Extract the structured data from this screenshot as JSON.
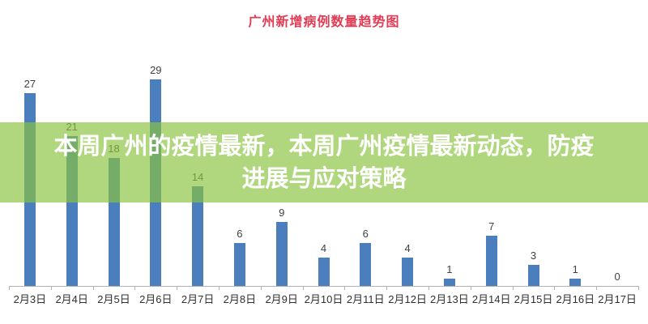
{
  "title": {
    "text": "广州新增病例数量趋势图",
    "color": "#E23C55"
  },
  "overlay": {
    "line1": "本周广州的疫情最新，本周广州疫情最新动态，防疫",
    "line2": "进展与应对策略",
    "full_text": "本周广州的疫情最新，本周广州疫情最新动态，防疫进展与应对策略",
    "band_color": "#89C43E",
    "band_opacity": 0.67,
    "text_color": "#FFFFFF"
  },
  "chart_data": {
    "type": "bar",
    "title": "广州新增病例数量趋势图",
    "categories": [
      "2月3日",
      "2月4日",
      "2月5日",
      "2月6日",
      "2月7日",
      "2月8日",
      "2月9日",
      "2月10日",
      "2月11日",
      "2月12日",
      "2月13日",
      "2月14日",
      "2月15日",
      "2月16日",
      "2月17日"
    ],
    "values": [
      27,
      21,
      18,
      29,
      14,
      6,
      9,
      4,
      6,
      4,
      1,
      7,
      3,
      1,
      0
    ],
    "xlabel": "",
    "ylabel": "",
    "ylim": [
      0,
      29
    ],
    "grid": false,
    "legend": false,
    "data_labels": true,
    "bar_color": "#4A7EBD",
    "value_label_color": "#404040",
    "axis_color": "#B3B3B3",
    "x_label_color": "#303030"
  }
}
